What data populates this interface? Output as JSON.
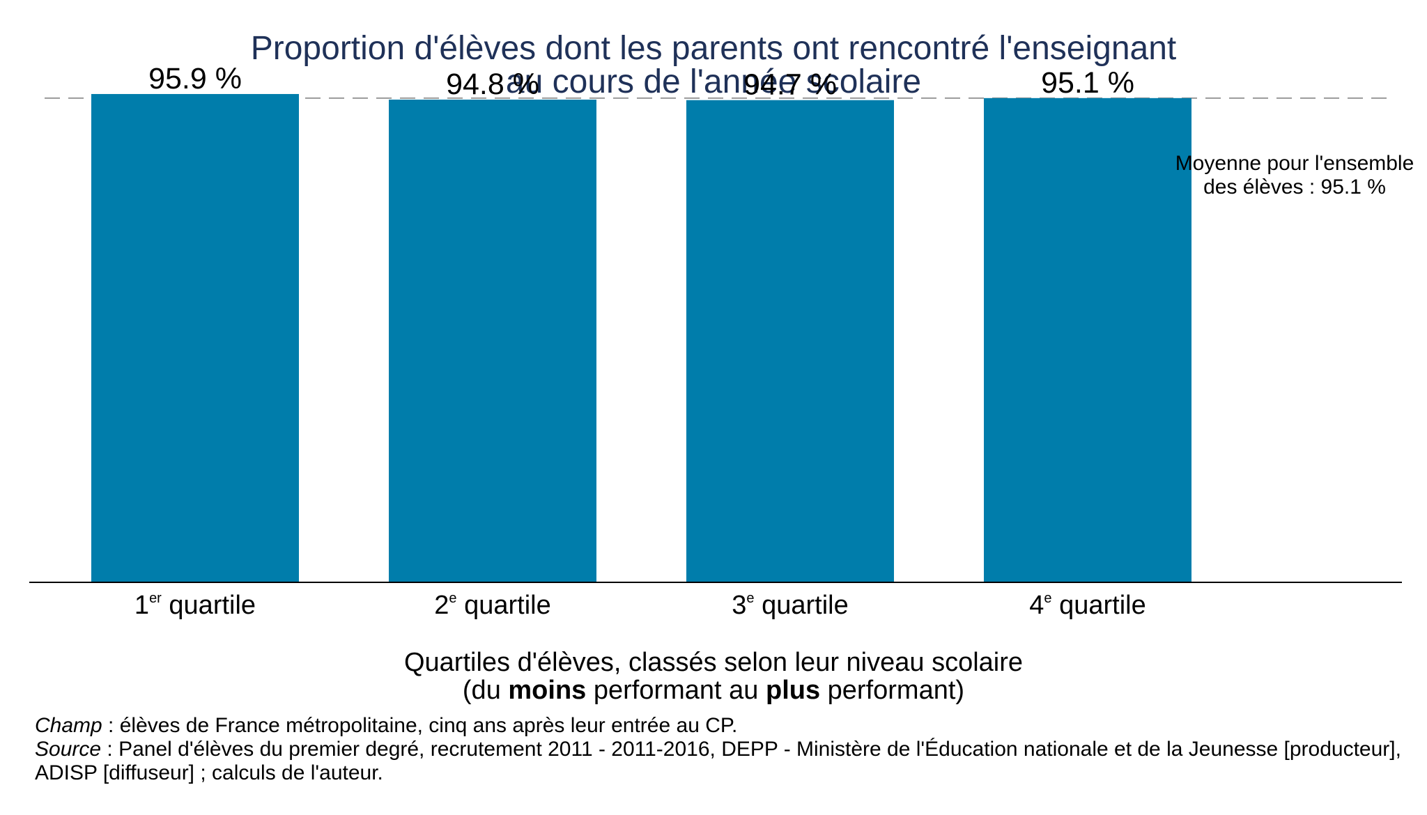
{
  "chart_data": {
    "type": "bar",
    "title": [
      "Proportion d'élèves dont les parents ont rencontré l'enseignant",
      "au cours de l'année scolaire"
    ],
    "categories": [
      {
        "num": "1",
        "sup": "er",
        "text": " quartile"
      },
      {
        "num": "2",
        "sup": "e",
        "text": " quartile"
      },
      {
        "num": "3",
        "sup": "e",
        "text": " quartile"
      },
      {
        "num": "4",
        "sup": "e",
        "text": " quartile"
      }
    ],
    "values": [
      95.9,
      94.8,
      94.7,
      95.1
    ],
    "value_labels": [
      "95.9 %",
      "94.8 %",
      "94.7 %",
      "95.1 %"
    ],
    "ylim": [
      0,
      100
    ],
    "reference_line": {
      "value": 95.1,
      "style": "dashed",
      "label": [
        "Moyenne pour l'ensemble",
        "des élèves : 95.1 %"
      ]
    },
    "xlabel": {
      "line1": "Quartiles d'élèves, classés selon leur niveau scolaire",
      "line2_parts": [
        {
          "text": "(du ",
          "bold": false
        },
        {
          "text": "moins",
          "bold": true
        },
        {
          "text": " performant au ",
          "bold": false
        },
        {
          "text": "plus",
          "bold": true
        },
        {
          "text": " performant)",
          "bold": false
        }
      ]
    },
    "ylabel": "",
    "grid": false,
    "colors": {
      "bar": "#007dab",
      "title": "#1f3158",
      "reference_line": "#999999"
    }
  },
  "notes": {
    "champ_label": "Champ",
    "champ_text": " : élèves de France métropolitaine, cinq ans après leur entrée au CP.",
    "source_label": "Source",
    "source_text": " : Panel d'élèves du premier degré, recrutement 2011 - 2011-2016, DEPP - Ministère de l'Éducation nationale et de la Jeunesse [producteur], ADISP [diffuseur] ; calculs de l'auteur."
  }
}
